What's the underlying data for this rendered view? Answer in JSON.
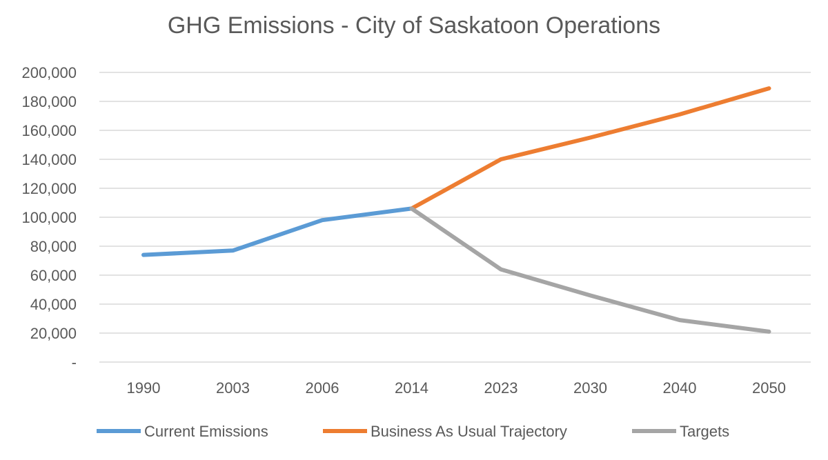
{
  "chart_data": {
    "type": "line",
    "title": "GHG Emissions - City of Saskatoon Operations",
    "categories": [
      "1990",
      "2003",
      "2006",
      "2014",
      "2023",
      "2030",
      "2040",
      "2050"
    ],
    "ylim": [
      0,
      200000
    ],
    "yticks": [
      0,
      20000,
      40000,
      60000,
      80000,
      100000,
      120000,
      140000,
      160000,
      180000,
      200000
    ],
    "ytick_labels": [
      "-",
      "20,000",
      "40,000",
      "60,000",
      "80,000",
      "100,000",
      "120,000",
      "140,000",
      "160,000",
      "180,000",
      "200,000"
    ],
    "grid": true,
    "legend_position": "bottom",
    "series": [
      {
        "name": "Current Emissions",
        "color": "#5B9BD5",
        "values": [
          74000,
          77000,
          98000,
          106000,
          null,
          null,
          null,
          null
        ]
      },
      {
        "name": "Business As Usual Trajectory",
        "color": "#ED7D31",
        "values": [
          null,
          null,
          null,
          106000,
          140000,
          155000,
          171000,
          189000
        ]
      },
      {
        "name": "Targets",
        "color": "#A5A5A5",
        "values": [
          null,
          null,
          null,
          106000,
          64000,
          46000,
          29000,
          21000
        ]
      }
    ]
  }
}
